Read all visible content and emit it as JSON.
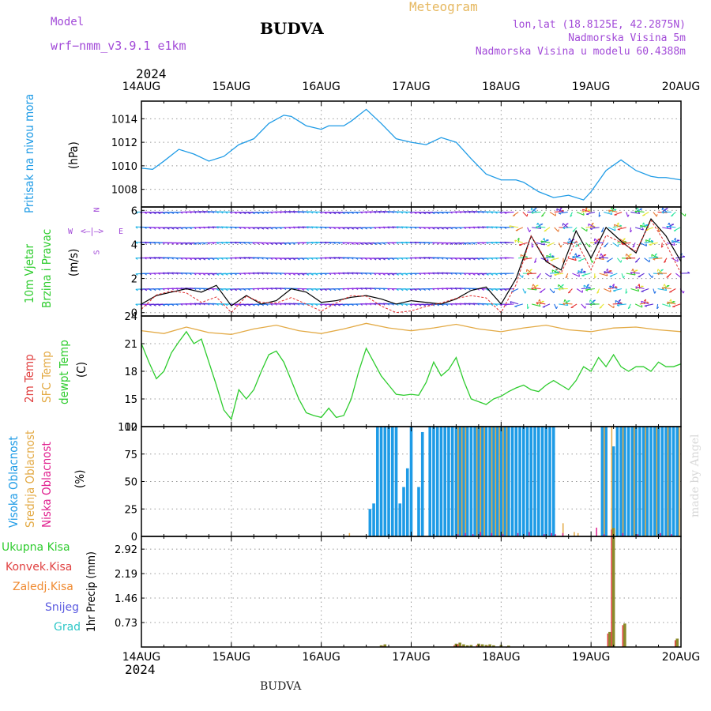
{
  "header": {
    "model_label": "Model",
    "model_name": "wrf−nmm_v3.9.1  e1km",
    "title": "BUDVA",
    "subtitle": "Meteogram",
    "coords": "lon,lat (18.8125E, 42.2875N)",
    "elevation": "Nadmorska Visina 5m",
    "model_elevation": "Nadmorska Visina u modelu 60.4388m",
    "year_top": "2024",
    "year_bottom": "2024",
    "footer": "BUDVA",
    "watermark": "made by Angel"
  },
  "panels": {
    "pressure": {
      "label": "Pritisak na nivou mora",
      "unit": "(hPa)"
    },
    "wind": {
      "label1": "10m Vjetar",
      "label2": "Brzina i Pravac",
      "unit": "(m/s)",
      "compass_n": "N",
      "compass_e": "E",
      "compass_w": "W",
      "compass_s": "S"
    },
    "temp": {
      "label1": "2m Temp",
      "label2": "SFC Temp",
      "label3": "dewpt Temp",
      "unit": "(C)"
    },
    "cloud": {
      "label1": "Visoka Oblacnost",
      "label2": "Srednja Oblacnost",
      "label3": "Niska Oblacnost",
      "unit": "(%)"
    },
    "precip": {
      "unit": "1hr Precip (mm)",
      "legend": [
        "Ukupna Kisa",
        "Konvek.Kisa",
        "Zaledj.Kisa",
        "Snijeg",
        "Grad"
      ]
    }
  },
  "colors": {
    "pressure": "#1e9be6",
    "tsfc": "#e3aa45",
    "dewpt": "#2ecc2e",
    "cloud_high": "#1e9be6",
    "cloud_mid": "#e3aa45",
    "cloud_low": "#e0208f",
    "rain_total": "#2ecc2e",
    "rain_conv": "#e04040",
    "rain_frz": "#f08a30",
    "snow": "#5a5ae0",
    "hail": "#30c8c8",
    "precip_bar": "#8b8b2a",
    "wind_speed": "#000000",
    "wind_gust": "#e03030"
  },
  "chart_data": [
    {
      "type": "line",
      "name": "pressure",
      "x_ticks": [
        "14AUG",
        "15AUG",
        "16AUG",
        "17AUG",
        "18AUG",
        "19AUG",
        "20AUG"
      ],
      "y_ticks": [
        "1008",
        "1010",
        "1012",
        "1014"
      ],
      "ylim": [
        1006.5,
        1015.5
      ],
      "x_hours": [
        0,
        3,
        6,
        10,
        14,
        18,
        22,
        26,
        30,
        34,
        38,
        40,
        44,
        48,
        50,
        54,
        56,
        60,
        64,
        68,
        72,
        76,
        80,
        84,
        88,
        92,
        96,
        100,
        102,
        106,
        110,
        114,
        118,
        120,
        124,
        128,
        132,
        136,
        138,
        140,
        144
      ],
      "y": [
        1009.8,
        1009.7,
        1010.4,
        1011.4,
        1011.0,
        1010.4,
        1010.8,
        1011.8,
        1012.3,
        1013.6,
        1014.3,
        1014.2,
        1013.4,
        1013.1,
        1013.4,
        1013.4,
        1013.8,
        1014.8,
        1013.6,
        1012.3,
        1012.0,
        1011.8,
        1012.4,
        1012.0,
        1010.6,
        1009.3,
        1008.8,
        1008.8,
        1008.6,
        1007.8,
        1007.3,
        1007.5,
        1007.1,
        1007.8,
        1009.6,
        1010.5,
        1009.6,
        1009.1,
        1009.0,
        1009.0,
        1008.8
      ]
    },
    {
      "type": "line",
      "name": "wind",
      "x_ticks": [
        "14AUG",
        "15AUG",
        "16AUG",
        "17AUG",
        "18AUG",
        "19AUG",
        "20AUG"
      ],
      "y_ticks": [
        "0",
        "2",
        "4",
        "6"
      ],
      "ylim": [
        -0.2,
        6.2
      ],
      "x_hours": [
        0,
        4,
        8,
        12,
        16,
        20,
        24,
        28,
        32,
        36,
        40,
        44,
        48,
        52,
        56,
        60,
        64,
        68,
        72,
        76,
        80,
        84,
        88,
        92,
        96,
        100,
        104,
        108,
        112,
        116,
        120,
        124,
        128,
        132,
        136,
        140,
        144
      ],
      "y": [
        0.5,
        1.0,
        1.2,
        1.4,
        1.2,
        1.6,
        0.4,
        1.0,
        0.5,
        0.7,
        1.4,
        1.2,
        0.6,
        0.7,
        0.9,
        1.0,
        0.8,
        0.5,
        0.7,
        0.6,
        0.5,
        0.8,
        1.3,
        1.5,
        0.5,
        2.0,
        4.5,
        3.0,
        2.5,
        4.8,
        3.2,
        5.0,
        4.2,
        3.5,
        5.5,
        4.5,
        3.0
      ]
    },
    {
      "type": "line",
      "name": "temperature",
      "x_ticks": [
        "14AUG",
        "15AUG",
        "16AUG",
        "17AUG",
        "18AUG",
        "19AUG",
        "20AUG"
      ],
      "y_ticks": [
        "12",
        "15",
        "18",
        "21",
        "24"
      ],
      "ylim": [
        12,
        24
      ],
      "series": [
        {
          "name": "SFC Temp",
          "x_hours": [
            0,
            6,
            12,
            18,
            24,
            30,
            36,
            42,
            48,
            54,
            60,
            66,
            72,
            78,
            84,
            90,
            96,
            102,
            108,
            114,
            120,
            126,
            132,
            138,
            144
          ],
          "y": [
            22.4,
            22.1,
            22.8,
            22.2,
            22.0,
            22.6,
            23.0,
            22.4,
            22.1,
            22.6,
            23.2,
            22.7,
            22.4,
            22.7,
            23.1,
            22.6,
            22.3,
            22.7,
            23.0,
            22.5,
            22.3,
            22.7,
            22.8,
            22.5,
            22.3
          ]
        },
        {
          "name": "dewpt Temp",
          "x_hours": [
            0,
            2,
            4,
            6,
            8,
            10,
            12,
            14,
            16,
            18,
            20,
            22,
            24,
            26,
            28,
            30,
            32,
            34,
            36,
            38,
            40,
            42,
            44,
            46,
            48,
            50,
            52,
            54,
            56,
            58,
            60,
            62,
            64,
            66,
            68,
            70,
            72,
            74,
            76,
            78,
            80,
            82,
            84,
            86,
            88,
            90,
            92,
            94,
            96,
            98,
            100,
            102,
            104,
            106,
            108,
            110,
            112,
            114,
            116,
            118,
            120,
            122,
            124,
            126,
            128,
            130,
            132,
            134,
            136,
            138,
            140,
            142,
            144
          ],
          "y": [
            21.0,
            19.0,
            17.2,
            18.0,
            20.0,
            21.2,
            22.3,
            21.0,
            21.5,
            19.0,
            16.5,
            13.8,
            12.8,
            16.0,
            15.0,
            16.0,
            18.0,
            19.8,
            20.2,
            19.0,
            17.0,
            15.0,
            13.5,
            13.2,
            13.0,
            14.0,
            13.0,
            13.2,
            15.0,
            18.0,
            20.5,
            19.0,
            17.5,
            16.5,
            15.5,
            15.4,
            15.5,
            15.4,
            16.8,
            19.0,
            17.5,
            18.2,
            19.5,
            17.0,
            15.0,
            14.7,
            14.4,
            15.0,
            15.3,
            15.8,
            16.2,
            16.5,
            16.0,
            15.8,
            16.5,
            17.0,
            16.5,
            16.0,
            17.0,
            18.5,
            18.0,
            19.5,
            18.5,
            19.8,
            18.5,
            18.0,
            18.5,
            18.5,
            18.0,
            19.0,
            18.5,
            18.5,
            18.8
          ]
        }
      ]
    },
    {
      "type": "bar",
      "name": "cloud_cover",
      "x_ticks": [
        "14AUG",
        "15AUG",
        "16AUG",
        "17AUG",
        "18AUG",
        "19AUG",
        "20AUG"
      ],
      "y_ticks": [
        "0",
        "25",
        "50",
        "75",
        "100"
      ],
      "ylim": [
        0,
        100
      ],
      "series": [
        {
          "name": "Visoka Oblacnost",
          "x_hours": [
            61,
            62,
            63,
            64,
            65,
            66,
            67,
            68,
            69,
            70,
            71,
            72,
            74,
            75,
            77,
            78,
            79,
            80,
            81,
            82,
            83,
            84,
            85,
            86,
            87,
            88,
            89,
            90,
            91,
            92,
            93,
            94,
            95,
            96,
            97,
            98,
            99,
            100,
            101,
            102,
            103,
            104,
            105,
            106,
            107,
            108,
            109,
            110,
            123,
            124,
            126,
            127,
            128,
            129,
            130,
            131,
            132,
            133,
            134,
            135,
            136,
            137,
            138,
            139,
            140,
            141,
            142,
            143
          ],
          "y": [
            25,
            30,
            100,
            100,
            100,
            100,
            100,
            100,
            30,
            45,
            62,
            100,
            45,
            95,
            100,
            100,
            100,
            100,
            100,
            100,
            100,
            100,
            100,
            100,
            100,
            100,
            100,
            100,
            100,
            100,
            100,
            100,
            100,
            100,
            100,
            100,
            100,
            100,
            100,
            100,
            100,
            100,
            100,
            100,
            100,
            100,
            100,
            100,
            100,
            100,
            82,
            100,
            100,
            100,
            100,
            100,
            100,
            100,
            100,
            100,
            100,
            100,
            100,
            100,
            100,
            100,
            100,
            100
          ]
        },
        {
          "name": "Srednja Oblacnost",
          "x_hours": [
            55,
            84,
            85,
            86,
            89,
            90,
            91,
            93,
            94,
            95,
            96,
            97,
            112,
            115,
            116,
            123,
            125,
            128,
            131,
            134,
            137,
            140,
            143
          ],
          "y": [
            3,
            100,
            100,
            100,
            100,
            100,
            100,
            100,
            100,
            100,
            100,
            100,
            12,
            4,
            3,
            100,
            100,
            100,
            100,
            100,
            100,
            100,
            100
          ]
        },
        {
          "name": "Niska Oblacnost",
          "x_hours": [
            85,
            87,
            89,
            91,
            94,
            97,
            101,
            104,
            108,
            110,
            111,
            113,
            122,
            124,
            129,
            133,
            139,
            142
          ],
          "y": [
            2,
            3,
            2,
            4,
            3,
            2,
            3,
            4,
            2,
            3,
            2,
            3,
            8,
            2,
            3,
            2,
            3,
            2
          ]
        }
      ]
    },
    {
      "type": "bar",
      "name": "precipitation",
      "x_ticks": [
        "14AUG",
        "15AUG",
        "16AUG",
        "17AUG",
        "18AUG",
        "19AUG",
        "20AUG"
      ],
      "y_ticks": [
        "0.73",
        "1.46",
        "2.19",
        "2.92"
      ],
      "ylim": [
        0,
        3.3
      ],
      "x_hours": [
        64,
        65,
        84,
        85,
        86,
        87,
        88,
        90,
        91,
        92,
        93,
        94,
        96,
        98,
        125,
        126,
        129,
        143
      ],
      "y": [
        0.05,
        0.08,
        0.1,
        0.13,
        0.08,
        0.05,
        0.06,
        0.1,
        0.08,
        0.06,
        0.08,
        0.05,
        0.06,
        0.04,
        0.45,
        3.55,
        0.7,
        0.25
      ]
    }
  ]
}
